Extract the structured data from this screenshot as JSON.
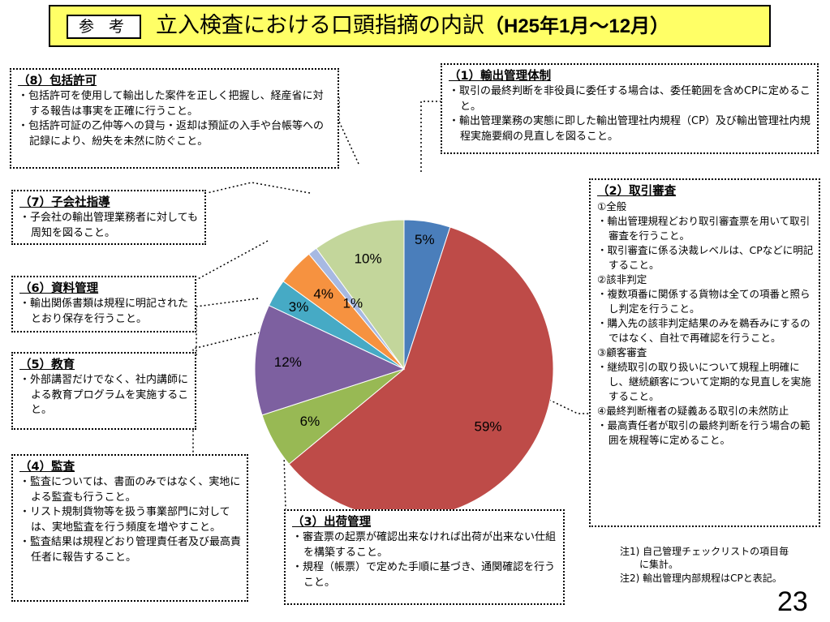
{
  "header": {
    "badge": "参 考",
    "title_main": "立入検査における口頭指摘の内訳",
    "title_range": "（H25年1月～12月）"
  },
  "boxes": {
    "export_control": {
      "title": "（1）輸出管理体制",
      "items": [
        "取引の最終判断を非役員に委任する場合は、委任範囲を含めCPに定めること。",
        "輸出管理業務の実態に即した輸出管理社内規程（CP）及び輸出管理社内規程実施要綱の見直しを図ること。"
      ]
    },
    "transaction_review": {
      "title": "（2）取引審査",
      "sections": [
        {
          "heading": "①全般",
          "items": [
            "輸出管理規程どおり取引審査票を用いて取引審査を行うこと。",
            "取引審査に係る決裁レベルは、CPなどに明記すること。"
          ]
        },
        {
          "heading": "②該非判定",
          "items": [
            "複数項番に関係する貨物は全ての項番と照らし判定を行うこと。",
            "購入先の該非判定結果のみを鵜呑みにするのではなく、自社で再確認を行うこと。"
          ]
        },
        {
          "heading": "③顧客審査",
          "items": [
            "継続取引の取り扱いについて規程上明確にし、継続顧客について定期的な見直しを実施すること。"
          ]
        },
        {
          "heading": "④最終判断権者の疑義ある取引の未然防止",
          "items": [
            "最高責任者が取引の最終判断を行う場合の範囲を規程等に定めること。"
          ]
        }
      ]
    },
    "shipping": {
      "title": "（3）出荷管理",
      "items": [
        "審査票の起票が確認出来なければ出荷が出来ない仕組を構築すること。",
        "規程（帳票）で定めた手順に基づき、通関確認を行うこと。"
      ]
    },
    "audit": {
      "title": "（4）監査",
      "items": [
        "監査については、書面のみではなく、実地による監査も行うこと。",
        "リスト規制貨物等を扱う事業部門に対しては、実地監査を行う頻度を増やすこと。",
        "監査結果は規程どおり管理責任者及び最高責任者に報告すること。"
      ]
    },
    "education": {
      "title": "（5）教育",
      "items": [
        "外部講習だけでなく、社内講師による教育プログラムを実施すること。"
      ]
    },
    "documents": {
      "title": "（6）資料管理",
      "items": [
        "輸出関係書類は規程に明記されたとおり保存を行うこと。"
      ]
    },
    "subsidiary": {
      "title": "（7）子会社指導",
      "items": [
        "子会社の輸出管理業務者に対しても周知を図ること。"
      ]
    },
    "comprehensive": {
      "title": "（8）包括許可",
      "items": [
        "包括許可を使用して輸出した案件を正しく把握し、経産省に対する報告は事実を正確に行うこと。",
        "包括許可証の乙仲等への貸与・返却は預証の入手や台帳等への記録により、紛失を未然に防ぐこと。"
      ]
    }
  },
  "notes": [
    "注1) 自己管理チェックリストの項目毎に集計。",
    "注2) 輸出管理内部規程はCPと表記。"
  ],
  "page_number": "23",
  "chart_data": {
    "type": "pie",
    "title": "",
    "slices": [
      {
        "label": "5%",
        "value": 5,
        "color": "#4a7ebb",
        "category": "（1）輸出管理体制"
      },
      {
        "label": "59%",
        "value": 59,
        "color": "#be4b48",
        "category": "（2）取引審査"
      },
      {
        "label": "6%",
        "value": 6,
        "color": "#98b954",
        "category": "（3）出荷管理"
      },
      {
        "label": "12%",
        "value": 12,
        "color": "#7d60a0",
        "category": "（4）監査"
      },
      {
        "label": "3%",
        "value": 3,
        "color": "#46aac5",
        "category": "（5）教育"
      },
      {
        "label": "4%",
        "value": 4,
        "color": "#f69240",
        "category": "（6）資料管理"
      },
      {
        "label": "1%",
        "value": 1,
        "color": "#a7b9e2",
        "category": "（7）子会社指導"
      },
      {
        "label": "10%",
        "value": 10,
        "color": "#c3d69b",
        "category": "（8）包括許可"
      }
    ],
    "start_angle_deg": 0,
    "direction": "clockwise"
  }
}
